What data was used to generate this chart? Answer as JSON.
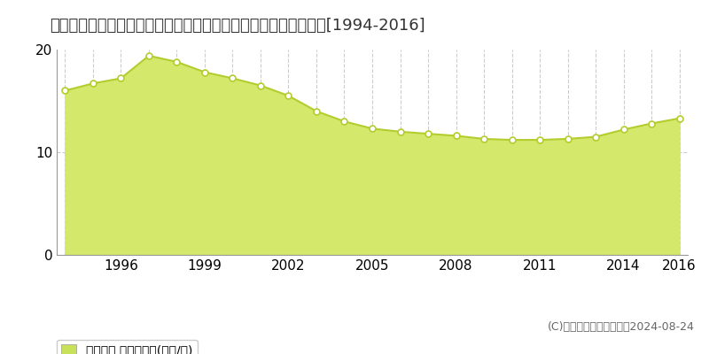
{
  "title": "宮城県黒川郡富谷町あけの平３丁目７番６　地価公示　地価推移[1994-2016]",
  "years": [
    1994,
    1995,
    1996,
    1997,
    1998,
    1999,
    2000,
    2001,
    2002,
    2003,
    2004,
    2005,
    2006,
    2007,
    2008,
    2009,
    2010,
    2011,
    2012,
    2013,
    2014,
    2015,
    2016
  ],
  "values": [
    16.0,
    16.7,
    17.2,
    19.4,
    18.8,
    17.8,
    17.2,
    16.5,
    15.5,
    14.0,
    13.0,
    12.3,
    12.0,
    11.8,
    11.6,
    11.3,
    11.2,
    11.2,
    11.3,
    11.5,
    12.2,
    12.8,
    13.3
  ],
  "fill_color": "#d4e96b",
  "line_color": "#b5cc2e",
  "marker_color": "#ffffff",
  "marker_edge_color": "#b5cc2e",
  "bg_color": "#ffffff",
  "plot_bg_color": "#ffffff",
  "grid_color": "#cccccc",
  "ylim": [
    0,
    20
  ],
  "yticks": [
    0,
    10,
    20
  ],
  "legend_label": "地価公示 平均坪単価(万円/坪)",
  "legend_color": "#c8e05a",
  "copyright_text": "(C)土地価格ドットコム　2024-08-24",
  "xtick_years": [
    1996,
    1999,
    2002,
    2005,
    2008,
    2011,
    2014,
    2016
  ],
  "title_fontsize": 13,
  "tick_fontsize": 11,
  "legend_fontsize": 10,
  "copyright_fontsize": 9
}
